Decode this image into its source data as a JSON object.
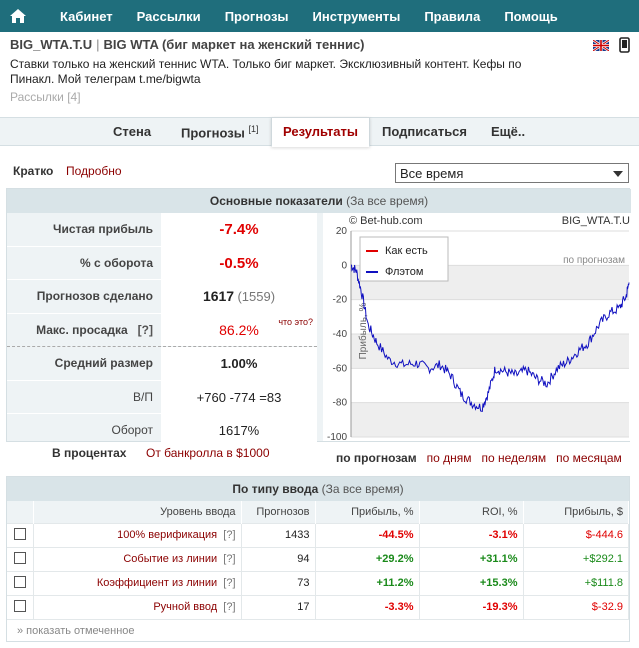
{
  "nav": {
    "items": [
      "Кабинет",
      "Рассылки",
      "Прогнозы",
      "Инструменты",
      "Правила",
      "Помощь"
    ]
  },
  "header": {
    "title_short": "BIG_WTA.T.U",
    "title_long": "BIG WTA (биг маркет на женский теннис)",
    "separator": "|",
    "description": "Ставки только на женский теннис WTA. Только биг маркет. Эксклюзивный контент. Кефы по Пинакл. Мой телеграм t.me/bigwta",
    "mailings": "Рассылки [4]"
  },
  "tabs": [
    {
      "label": "Стена",
      "sup": ""
    },
    {
      "label": "Прогнозы",
      "sup": "[1]"
    },
    {
      "label": "Результаты",
      "sup": ""
    },
    {
      "label": "Подписаться",
      "sup": ""
    },
    {
      "label": "Ещё..",
      "sup": ""
    }
  ],
  "mode": {
    "brief": "Кратко",
    "detailed": "Подробно"
  },
  "period": {
    "selected": "Все время"
  },
  "panel": {
    "title": "Основные показатели",
    "subtitle": "(За все время)"
  },
  "stats": {
    "profit_label": "Чистая прибыль",
    "profit": "-7.4%",
    "turnover_pct_label": "% с оборота",
    "turnover_pct": "-0.5%",
    "made_label": "Прогнозов сделано",
    "made": "1617",
    "made_extra": "(1559)",
    "dd_label": "Макс. просадка",
    "dd_q": "[?]",
    "dd": "86.2%",
    "dd_hint": "что это?",
    "avg_label": "Средний размер",
    "avg": "1.00%",
    "wl_label": "В/П",
    "wl_win": "+760",
    "wl_loss": "-774",
    "wl_draw": "=83",
    "turnover_label": "Оборот",
    "turnover": "1617%"
  },
  "percent": {
    "label": "В процентах",
    "bankroll": "От банкролла в $1000"
  },
  "ranges": {
    "active": "по прогнозам",
    "items": [
      "по дням",
      "по неделям",
      "по месяцам"
    ]
  },
  "chart_data": {
    "type": "line",
    "title": "BIG_WTA.T.U",
    "copyright": "© Bet-hub.com",
    "ylabel": "Прибыль, %",
    "xlabel_note": "по прогнозам",
    "ylim": [
      -100,
      20
    ],
    "yticks": [
      20,
      0,
      -20,
      -40,
      -60,
      -80,
      -100
    ],
    "legend": [
      "Как есть",
      "Флэтом"
    ],
    "legend_colors": [
      "#e00000",
      "#1010c0"
    ],
    "series": [
      {
        "name": "Флэтом",
        "x": [
          0,
          30,
          60,
          100,
          150,
          220,
          300,
          380,
          450,
          520,
          580,
          640,
          700,
          760,
          800,
          840,
          900,
          960,
          1020,
          1080,
          1140,
          1200,
          1260,
          1320,
          1380,
          1440,
          1500,
          1560,
          1600,
          1617
        ],
        "values": [
          0,
          -3,
          -15,
          -35,
          -45,
          -55,
          -58,
          -57,
          -60,
          -58,
          -64,
          -75,
          -80,
          -83,
          -74,
          -60,
          -62,
          -64,
          -61,
          -66,
          -69,
          -60,
          -56,
          -50,
          -45,
          -35,
          -28,
          -25,
          -18,
          -10
        ]
      }
    ]
  },
  "table2": {
    "title": "По типу ввода",
    "subtitle": "(За все время)",
    "headers": [
      "Уровень ввода",
      "Прогнозов",
      "Прибыль, %",
      "ROI, %",
      "Прибыль, $"
    ],
    "rows": [
      {
        "name": "100% верификация",
        "q": "[?]",
        "count": "1433",
        "profit": "-44.5%",
        "roi": "-3.1%",
        "usd": "$-444.6"
      },
      {
        "name": "Событие из линии",
        "q": "[?]",
        "count": "94",
        "profit": "+29.2%",
        "roi": "+31.1%",
        "usd": "+$292.1"
      },
      {
        "name": "Коэффициент из линии",
        "q": "[?]",
        "count": "73",
        "profit": "+11.2%",
        "roi": "+15.3%",
        "usd": "+$111.8"
      },
      {
        "name": "Ручной ввод",
        "q": "[?]",
        "count": "17",
        "profit": "-3.3%",
        "roi": "-19.3%",
        "usd": "$-32.9"
      }
    ],
    "show_marked": "» показать отмеченное"
  }
}
